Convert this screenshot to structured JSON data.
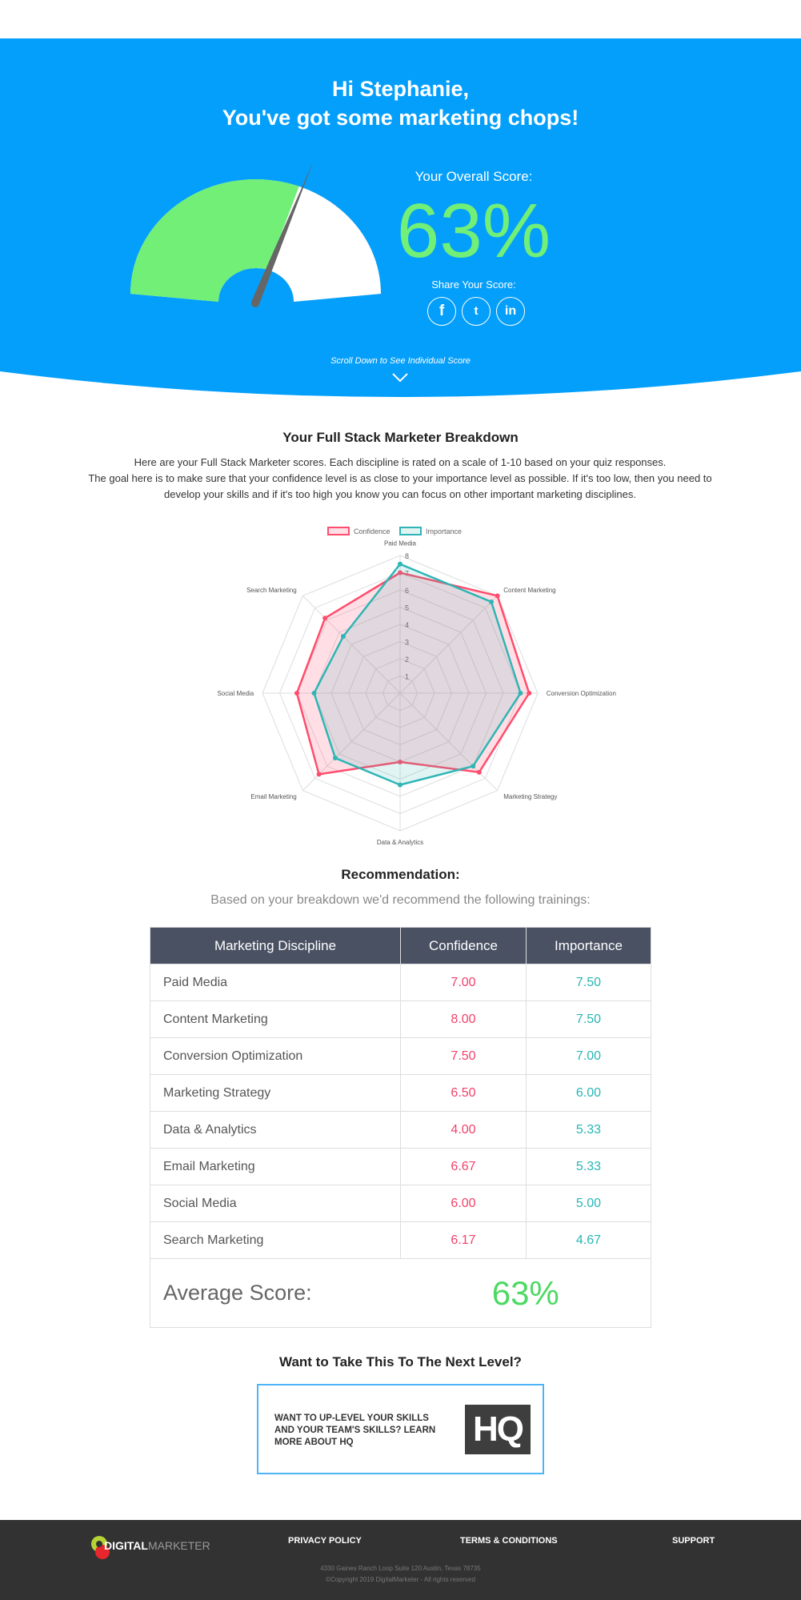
{
  "hero": {
    "greeting": "Hi Stephanie,",
    "headline": "You've got some marketing chops!",
    "overall_label": "Your Overall Score:",
    "overall_score": "63%",
    "overall_value": 63,
    "share_label": "Share Your Score:",
    "share_icons": [
      "facebook-icon",
      "twitter-icon",
      "linkedin-icon"
    ],
    "facebook": "f",
    "twitter": "t",
    "linkedin": "in",
    "scroll_hint": "Scroll Down to See Individual Score"
  },
  "breakdown": {
    "title": "Your Full Stack Marketer Breakdown",
    "line1": "Here are your Full Stack Marketer scores. Each discipline is rated on a scale of 1-10 based on your quiz responses.",
    "line2": "The goal here is to make sure that your confidence level is as close to your importance level as possible. If it's too low, then you need to develop your skills and if it's too high you know you can focus on other important marketing disciplines."
  },
  "chart_data": {
    "type": "radar",
    "categories": [
      "Paid Media",
      "Content Marketing",
      "Conversion Optimization",
      "Marketing Strategy",
      "Data & Analytics",
      "Email Marketing",
      "Social Media",
      "Search Marketing"
    ],
    "series": [
      {
        "name": "Confidence",
        "color": "#ff4d6d",
        "values": [
          7.0,
          8.0,
          7.5,
          6.5,
          4.0,
          6.67,
          6.0,
          6.17
        ]
      },
      {
        "name": "Importance",
        "color": "#2fb5b5",
        "values": [
          7.5,
          7.5,
          7.0,
          6.0,
          5.33,
          5.33,
          5.0,
          4.67
        ]
      }
    ],
    "rlim": [
      0,
      8
    ],
    "ticks": [
      "1",
      "2",
      "3",
      "4",
      "5",
      "6",
      "7",
      "8"
    ],
    "legend": "top"
  },
  "recommendation": {
    "title": "Recommendation:",
    "subtitle": "Based on your breakdown we'd recommend the following trainings:",
    "headers": [
      "Marketing Discipline",
      "Confidence",
      "Importance"
    ],
    "rows": [
      [
        "Paid Media",
        "7.00",
        "7.50"
      ],
      [
        "Content Marketing",
        "8.00",
        "7.50"
      ],
      [
        "Conversion Optimization",
        "7.50",
        "7.00"
      ],
      [
        "Marketing Strategy",
        "6.50",
        "6.00"
      ],
      [
        "Data & Analytics",
        "4.00",
        "5.33"
      ],
      [
        "Email Marketing",
        "6.67",
        "5.33"
      ],
      [
        "Social Media",
        "6.00",
        "5.00"
      ],
      [
        "Search Marketing",
        "6.17",
        "4.67"
      ]
    ],
    "average_label": "Average Score:",
    "average_value": "63%"
  },
  "next": {
    "title": "Want to Take This To The Next Level?",
    "cta": "WANT TO UP-LEVEL YOUR SKILLS AND YOUR TEAM'S SKILLS? LEARN MORE ABOUT HQ",
    "logo": "HQ"
  },
  "footer": {
    "logo_bold": "DIGITAL",
    "logo_light": "MARKETER",
    "links": [
      "PRIVACY POLICY",
      "TERMS & CONDITIONS",
      "SUPPORT"
    ],
    "address": "4330 Gaines Ranch Loop Suite 120 Austin, Texas 78735",
    "copyright": "©Copyright 2019 DigitalMarketer - All rights reserved"
  },
  "colors": {
    "hero": "#049ffb",
    "gauge": "#72ef76",
    "table_header": "#4a5163"
  }
}
